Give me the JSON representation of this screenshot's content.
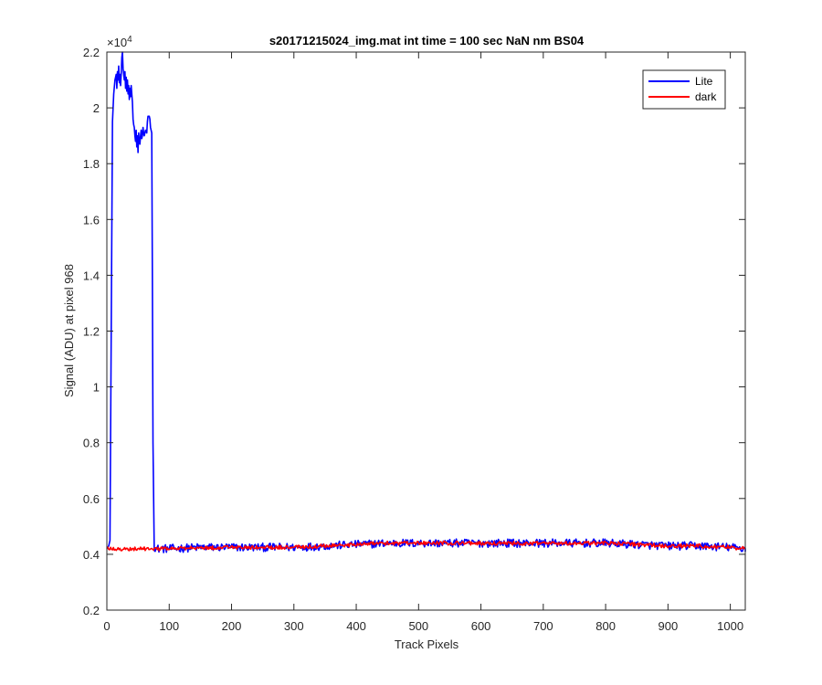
{
  "chart_data": {
    "type": "line",
    "title": "s20171215024_img.mat int time = 100 sec  NaN nm BS04",
    "xlabel": "Track Pixels",
    "ylabel": "Signal (ADU) at pixel 968",
    "exponent_label": "×10",
    "exponent_power": "4",
    "xlim": [
      0,
      1024
    ],
    "ylim": [
      0.2,
      2.2
    ],
    "xticks": [
      0,
      100,
      200,
      300,
      400,
      500,
      600,
      700,
      800,
      900,
      1000
    ],
    "yticks": [
      0.2,
      0.4,
      0.6,
      0.8,
      1,
      1.2,
      1.4,
      1.6,
      1.8,
      2,
      2.2
    ],
    "xtick_labels": [
      "0",
      "100",
      "200",
      "300",
      "400",
      "500",
      "600",
      "700",
      "800",
      "900",
      "1000"
    ],
    "ytick_labels": [
      "0.2",
      "0.4",
      "0.6",
      "0.8",
      "1",
      "1.2",
      "1.4",
      "1.6",
      "1.8",
      "2",
      "2.2"
    ],
    "grid": false,
    "legend_position": "top-right",
    "series": [
      {
        "name": "Lite",
        "color": "#0000ff",
        "points": [
          [
            0,
            0.42
          ],
          [
            3,
            0.43
          ],
          [
            5,
            0.45
          ],
          [
            7,
            1.2
          ],
          [
            9,
            1.95
          ],
          [
            11,
            2.05
          ],
          [
            13,
            2.1
          ],
          [
            15,
            2.12
          ],
          [
            16,
            2.07
          ],
          [
            17,
            2.13
          ],
          [
            18,
            2.1
          ],
          [
            19,
            2.15
          ],
          [
            20,
            2.09
          ],
          [
            21,
            2.12
          ],
          [
            22,
            2.08
          ],
          [
            23,
            2.12
          ],
          [
            24,
            2.18
          ],
          [
            25,
            2.2
          ],
          [
            26,
            2.14
          ],
          [
            27,
            2.12
          ],
          [
            28,
            2.1
          ],
          [
            29,
            2.13
          ],
          [
            30,
            2.07
          ],
          [
            31,
            2.11
          ],
          [
            32,
            2.06
          ],
          [
            33,
            2.1
          ],
          [
            34,
            2.05
          ],
          [
            35,
            2.08
          ],
          [
            36,
            2.03
          ],
          [
            37,
            2.07
          ],
          [
            38,
            2.04
          ],
          [
            39,
            2.08
          ],
          [
            40,
            2.05
          ],
          [
            41,
            2.02
          ],
          [
            42,
            1.96
          ],
          [
            43,
            1.94
          ],
          [
            44,
            1.93
          ],
          [
            45,
            1.9
          ],
          [
            46,
            1.88
          ],
          [
            47,
            1.92
          ],
          [
            48,
            1.86
          ],
          [
            49,
            1.9
          ],
          [
            50,
            1.84
          ],
          [
            51,
            1.91
          ],
          [
            52,
            1.88
          ],
          [
            53,
            1.87
          ],
          [
            54,
            1.9
          ],
          [
            55,
            1.92
          ],
          [
            56,
            1.89
          ],
          [
            57,
            1.9
          ],
          [
            58,
            1.93
          ],
          [
            59,
            1.91
          ],
          [
            60,
            1.9
          ],
          [
            62,
            1.92
          ],
          [
            64,
            1.91
          ],
          [
            65,
            1.95
          ],
          [
            66,
            1.97
          ],
          [
            68,
            1.97
          ],
          [
            69,
            1.96
          ],
          [
            70,
            1.93
          ],
          [
            71,
            1.92
          ],
          [
            72,
            1.91
          ],
          [
            73,
            1.4
          ],
          [
            74,
            0.8
          ],
          [
            75,
            0.43
          ],
          [
            80,
            0.42
          ],
          [
            100,
            0.42
          ],
          [
            150,
            0.425
          ],
          [
            200,
            0.425
          ],
          [
            250,
            0.425
          ],
          [
            300,
            0.425
          ],
          [
            350,
            0.43
          ],
          [
            400,
            0.435
          ],
          [
            450,
            0.44
          ],
          [
            500,
            0.44
          ],
          [
            550,
            0.44
          ],
          [
            600,
            0.44
          ],
          [
            650,
            0.44
          ],
          [
            700,
            0.44
          ],
          [
            750,
            0.44
          ],
          [
            800,
            0.44
          ],
          [
            850,
            0.435
          ],
          [
            900,
            0.43
          ],
          [
            950,
            0.43
          ],
          [
            1000,
            0.425
          ],
          [
            1024,
            0.42
          ]
        ]
      },
      {
        "name": "dark",
        "color": "#ff0000",
        "points": [
          [
            0,
            0.42
          ],
          [
            100,
            0.42
          ],
          [
            200,
            0.425
          ],
          [
            300,
            0.425
          ],
          [
            350,
            0.43
          ],
          [
            400,
            0.435
          ],
          [
            450,
            0.44
          ],
          [
            500,
            0.44
          ],
          [
            550,
            0.44
          ],
          [
            600,
            0.44
          ],
          [
            650,
            0.44
          ],
          [
            700,
            0.44
          ],
          [
            750,
            0.44
          ],
          [
            800,
            0.44
          ],
          [
            850,
            0.435
          ],
          [
            900,
            0.43
          ],
          [
            950,
            0.43
          ],
          [
            1000,
            0.425
          ],
          [
            1024,
            0.42
          ]
        ],
        "noise": 0.007
      }
    ]
  }
}
